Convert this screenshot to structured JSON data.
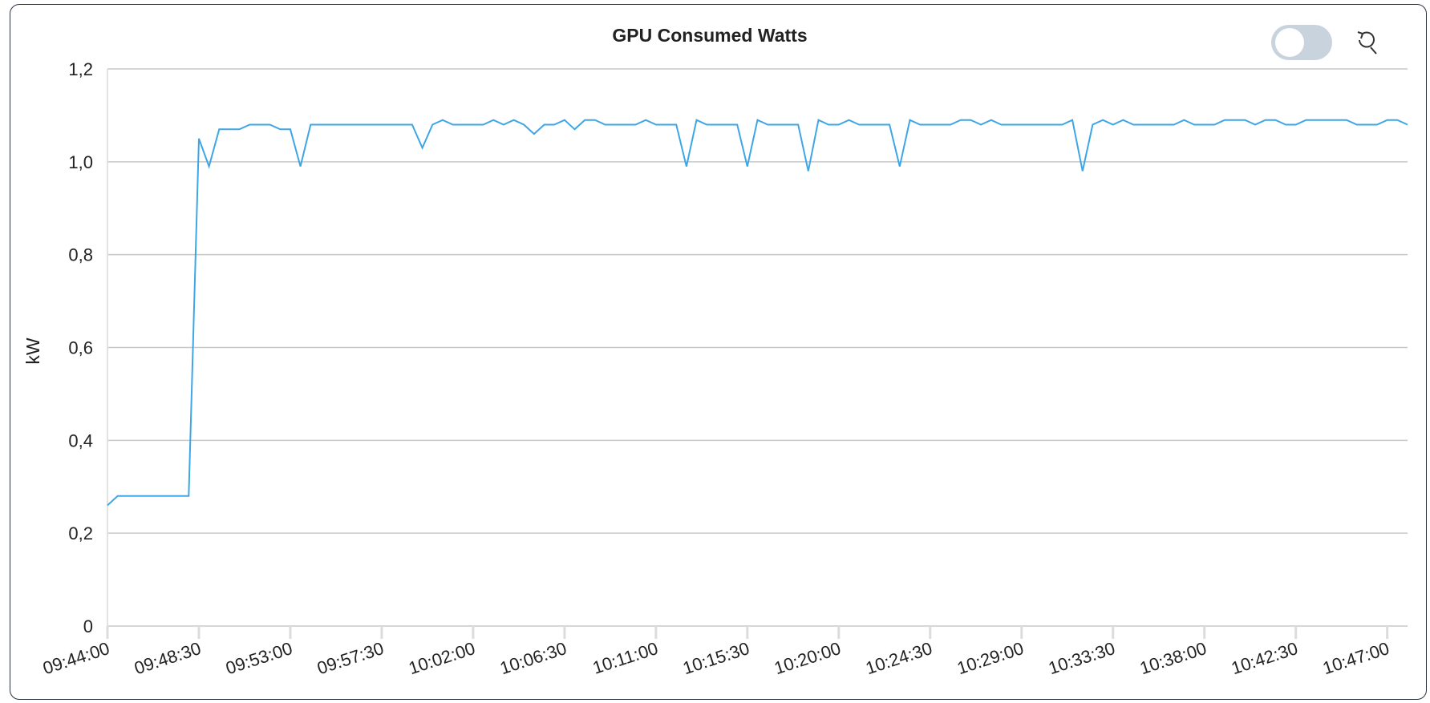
{
  "chart_data": {
    "type": "line",
    "title": "GPU Consumed Watts",
    "y_label": "kW",
    "categories": [
      "09:44:00",
      null,
      null,
      null,
      null,
      null,
      null,
      null,
      null,
      "09:48:30",
      null,
      null,
      null,
      null,
      null,
      null,
      null,
      null,
      "09:53:00",
      null,
      null,
      null,
      null,
      null,
      null,
      null,
      null,
      "09:57:30",
      null,
      null,
      null,
      null,
      null,
      null,
      null,
      null,
      "10:02:00",
      null,
      null,
      null,
      null,
      null,
      null,
      null,
      null,
      "10:06:30",
      null,
      null,
      null,
      null,
      null,
      null,
      null,
      null,
      "10:11:00",
      null,
      null,
      null,
      null,
      null,
      null,
      null,
      null,
      "10:15:30",
      null,
      null,
      null,
      null,
      null,
      null,
      null,
      null,
      "10:20:00",
      null,
      null,
      null,
      null,
      null,
      null,
      null,
      null,
      "10:24:30",
      null,
      null,
      null,
      null,
      null,
      null,
      null,
      null,
      "10:29:00",
      null,
      null,
      null,
      null,
      null,
      null,
      null,
      null,
      "10:33:30",
      null,
      null,
      null,
      null,
      null,
      null,
      null,
      null,
      "10:38:00",
      null,
      null,
      null,
      null,
      null,
      null,
      null,
      null,
      "10:42:30",
      null,
      null,
      null,
      null,
      null,
      null,
      null,
      null,
      "10:47:00",
      null,
      null
    ],
    "series": [
      {
        "name": "GPU Consumed Watts",
        "color": "#3ea6e6",
        "values": [
          0.26,
          0.28,
          0.28,
          0.28,
          0.28,
          0.28,
          0.28,
          0.28,
          0.28,
          1.05,
          0.99,
          1.07,
          1.07,
          1.07,
          1.08,
          1.08,
          1.08,
          1.07,
          1.07,
          0.99,
          1.08,
          1.08,
          1.08,
          1.08,
          1.08,
          1.08,
          1.08,
          1.08,
          1.08,
          1.08,
          1.08,
          1.03,
          1.08,
          1.09,
          1.08,
          1.08,
          1.08,
          1.08,
          1.09,
          1.08,
          1.09,
          1.08,
          1.06,
          1.08,
          1.08,
          1.09,
          1.07,
          1.09,
          1.09,
          1.08,
          1.08,
          1.08,
          1.08,
          1.09,
          1.08,
          1.08,
          1.08,
          0.99,
          1.09,
          1.08,
          1.08,
          1.08,
          1.08,
          0.99,
          1.09,
          1.08,
          1.08,
          1.08,
          1.08,
          0.98,
          1.09,
          1.08,
          1.08,
          1.09,
          1.08,
          1.08,
          1.08,
          1.08,
          0.99,
          1.09,
          1.08,
          1.08,
          1.08,
          1.08,
          1.09,
          1.09,
          1.08,
          1.09,
          1.08,
          1.08,
          1.08,
          1.08,
          1.08,
          1.08,
          1.08,
          1.09,
          0.98,
          1.08,
          1.09,
          1.08,
          1.09,
          1.08,
          1.08,
          1.08,
          1.08,
          1.08,
          1.09,
          1.08,
          1.08,
          1.08,
          1.09,
          1.09,
          1.09,
          1.08,
          1.09,
          1.09,
          1.08,
          1.08,
          1.09,
          1.09,
          1.09,
          1.09,
          1.09,
          1.08,
          1.08,
          1.08,
          1.09,
          1.09,
          1.08
        ]
      }
    ],
    "ylim": [
      0,
      1.2
    ],
    "yticks": [
      0,
      {
        "value": 0.2,
        "label": "0,2"
      },
      {
        "value": 0.4,
        "label": "0,4"
      },
      {
        "value": 0.6,
        "label": "0,6"
      },
      {
        "value": 0.8,
        "label": "0,8"
      },
      {
        "value": 1.0,
        "label": "1,0"
      },
      {
        "value": 1.2,
        "label": "1,2"
      }
    ],
    "grid": true
  }
}
